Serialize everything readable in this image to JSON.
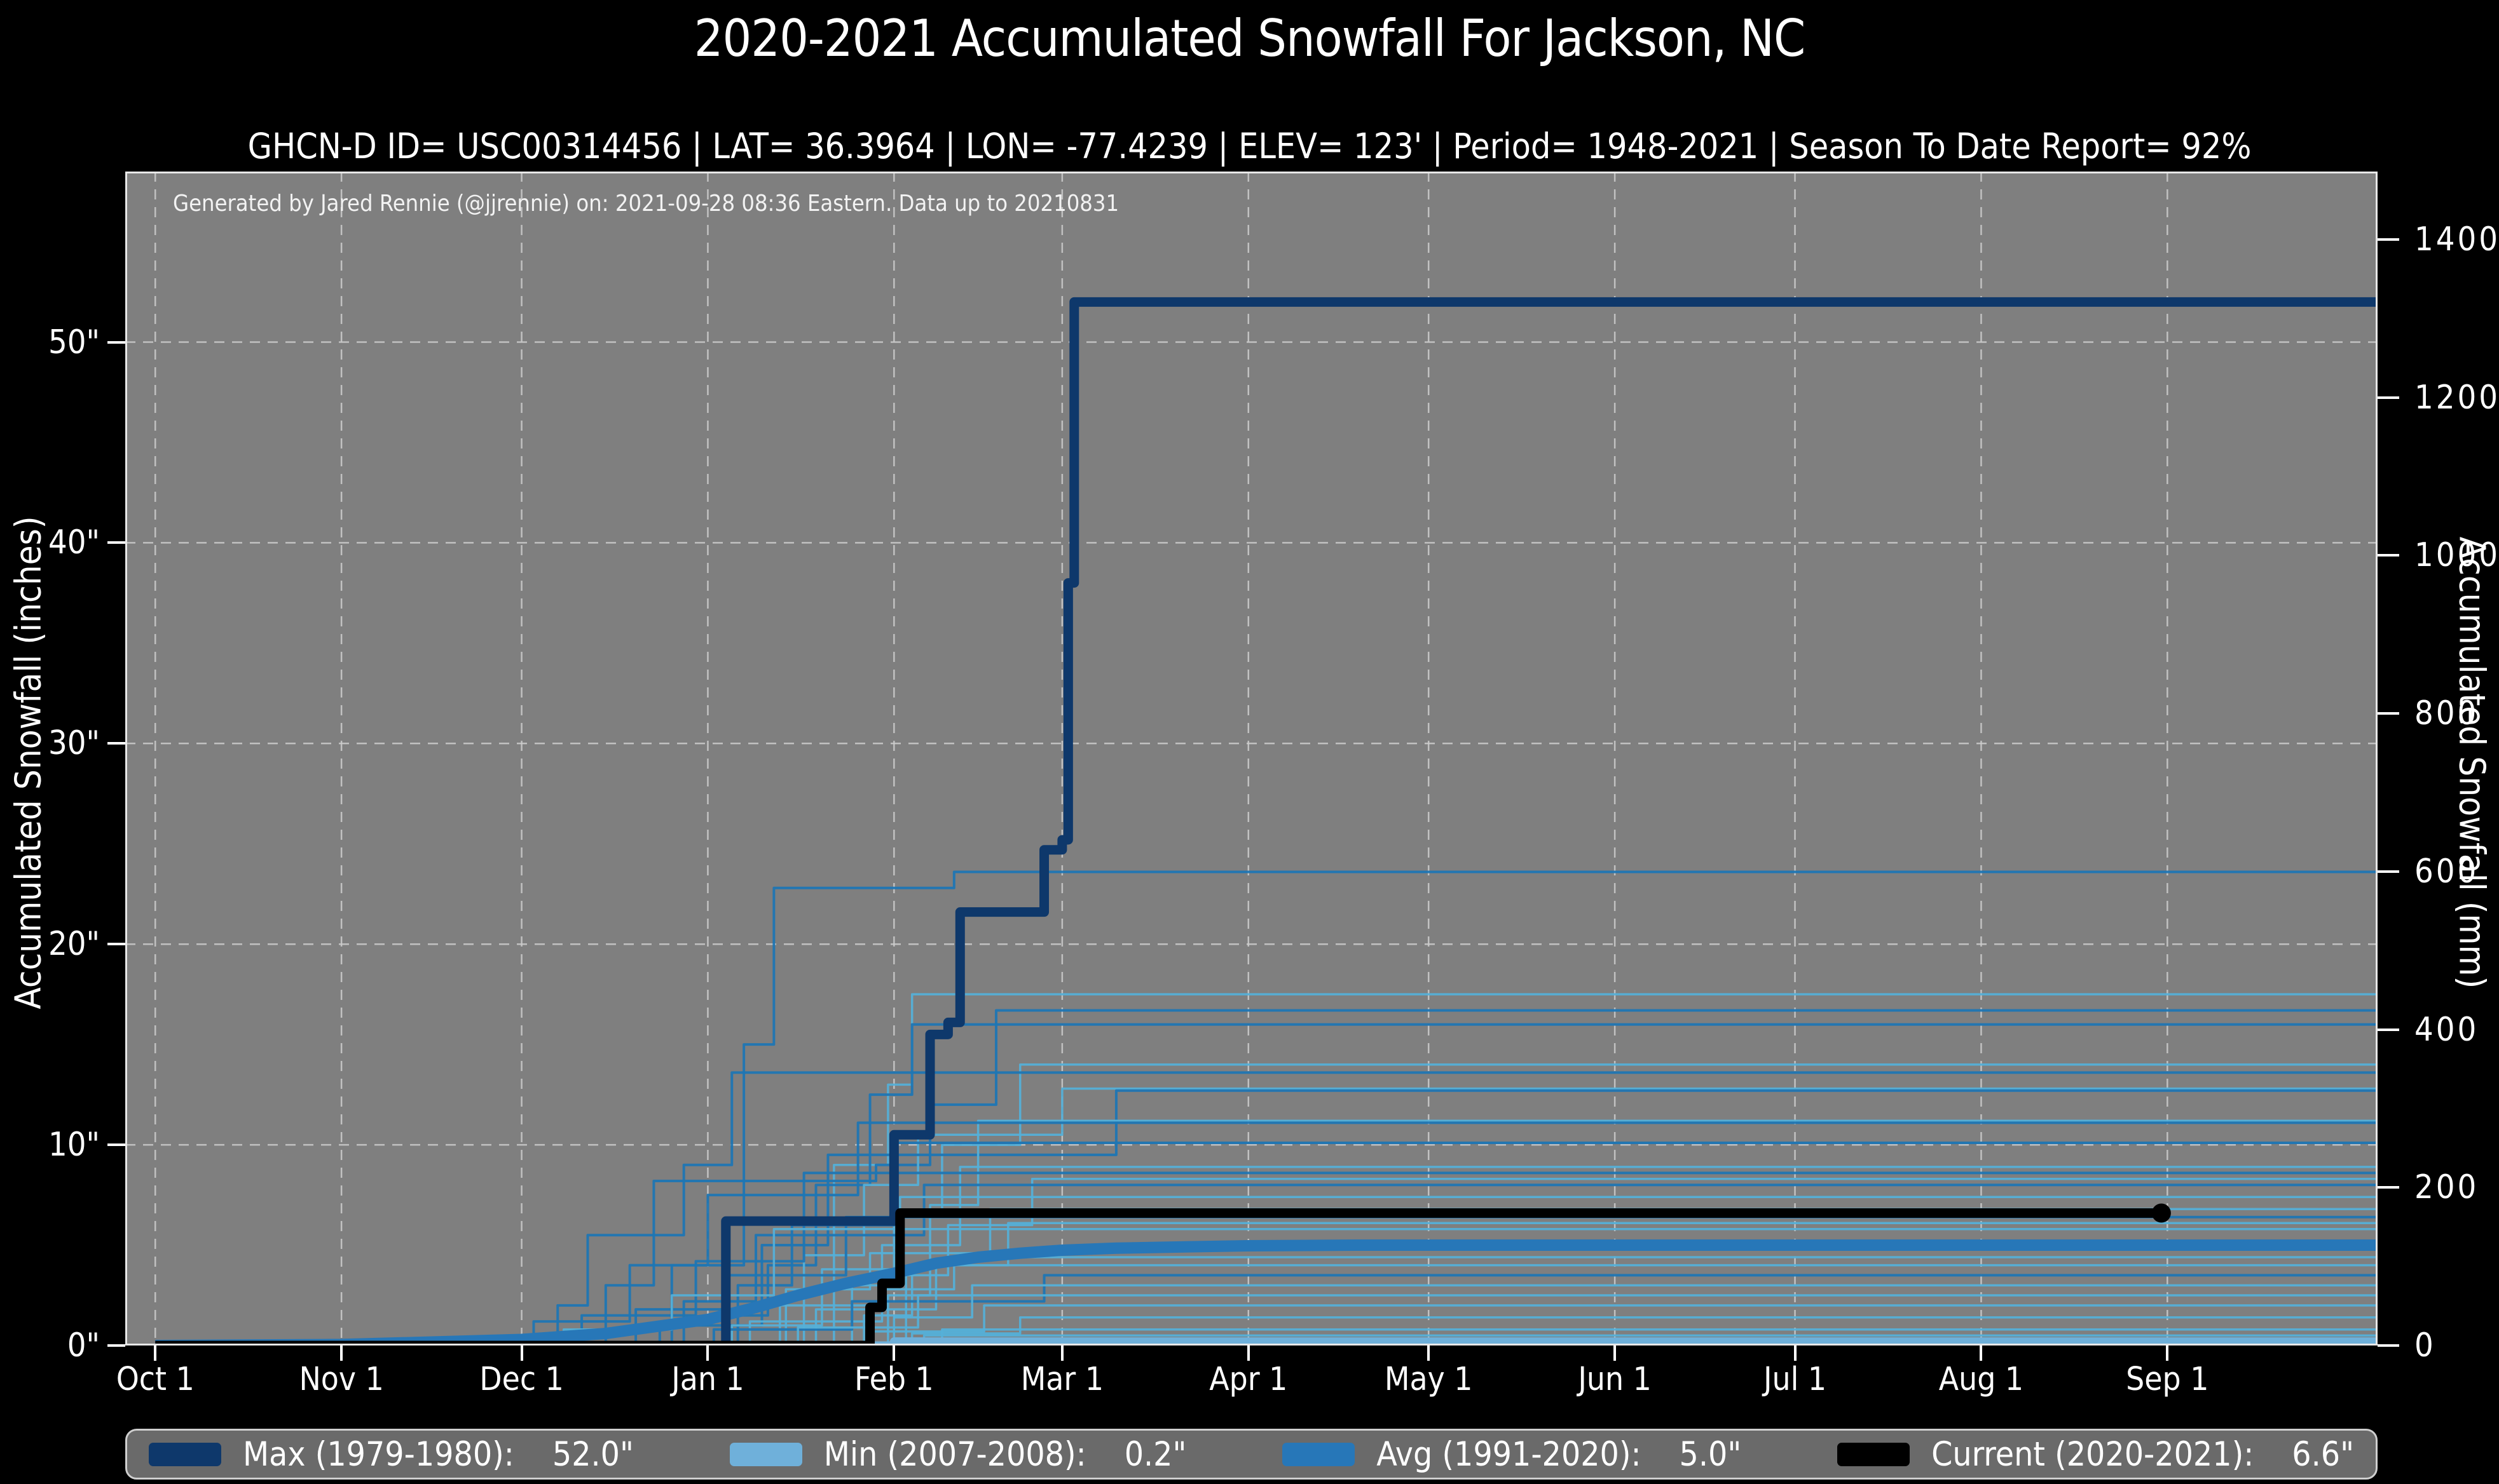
{
  "title": "2020-2021 Accumulated Snowfall For Jackson, NC",
  "subtitle": "GHCN-D ID= USC00314456 | LAT= 36.3964 | LON= -77.4239 | ELEV= 123' | Period= 1948-2021 | Season To Date Report= 92%",
  "watermark": "Generated by Jared Rennie (@jjrennie) on: 2021-09-28 08:36 Eastern. Data up to 20210831",
  "axes": {
    "left_label": "Accumulated Snowfall (inches)",
    "right_label": "Accumulated Snowfall (mm)",
    "inch_ticks": [
      {
        "value": 0,
        "label": "0\""
      },
      {
        "value": 10,
        "label": "10\""
      },
      {
        "value": 20,
        "label": "20\""
      },
      {
        "value": 30,
        "label": "30\""
      },
      {
        "value": 40,
        "label": "40\""
      },
      {
        "value": 50,
        "label": "50\""
      }
    ],
    "mm_ticks": [
      {
        "value": 0,
        "label": "0"
      },
      {
        "value": 200,
        "label": "200"
      },
      {
        "value": 400,
        "label": "400"
      },
      {
        "value": 600,
        "label": "600"
      },
      {
        "value": 800,
        "label": "800"
      },
      {
        "value": 1000,
        "label": "1000"
      },
      {
        "value": 1200,
        "label": "1200"
      },
      {
        "value": 1400,
        "label": "1400"
      }
    ],
    "month_ticks": [
      {
        "day": 0,
        "label": "Oct 1"
      },
      {
        "day": 31,
        "label": "Nov 1"
      },
      {
        "day": 61,
        "label": "Dec 1"
      },
      {
        "day": 92,
        "label": "Jan 1"
      },
      {
        "day": 123,
        "label": "Feb 1"
      },
      {
        "day": 151,
        "label": "Mar 1"
      },
      {
        "day": 182,
        "label": "Apr 1"
      },
      {
        "day": 212,
        "label": "May 1"
      },
      {
        "day": 243,
        "label": "Jun 1"
      },
      {
        "day": 273,
        "label": "Jul 1"
      },
      {
        "day": 304,
        "label": "Aug 1"
      },
      {
        "day": 335,
        "label": "Sep 1"
      }
    ]
  },
  "colors": {
    "page_bg": "#000000",
    "plot_bg": "#7f7f7f",
    "grid": "#cdcdcd",
    "spine": "#e8e8e8",
    "tick": "#ffffff",
    "max": "#0e386b",
    "min": "#6fb0da",
    "avg": "#2777b8",
    "current": "#000000",
    "hist_dark": "#1f76b4",
    "hist_light": "#55b0d8",
    "legend_bg": "#6a6a6a",
    "legend_border": "#cfcfcf"
  },
  "legend": {
    "items": [
      {
        "name": "max",
        "color": "#0e386b",
        "label": "Max (1979-1980):",
        "value": "52.0\""
      },
      {
        "name": "min",
        "color": "#6fb0da",
        "label": "Min (2007-2008):",
        "value": "0.2\""
      },
      {
        "name": "avg",
        "color": "#2777b8",
        "label": "Avg (1991-2020):",
        "value": "5.0\""
      },
      {
        "name": "current",
        "color": "#000000",
        "label": "Current (2020-2021):",
        "value": "6.6\""
      }
    ]
  },
  "chart_data": {
    "type": "line",
    "title": "2020-2021 Accumulated Snowfall For Jackson, NC",
    "x_unit": "day of season (Oct 1 = day 0)",
    "y_unit_left": "inches",
    "y_unit_right": "mm",
    "xlim_days": [
      -5,
      370
    ],
    "ylim_inches": [
      0,
      58.5
    ],
    "grid": "dashed, both axes",
    "legend_position": "bottom bar",
    "series": [
      {
        "name": "Max (1979-1980)",
        "total_inches": 52.0,
        "style": "step",
        "color_key": "max",
        "width": 15,
        "points": [
          [
            0,
            0
          ],
          [
            95,
            6.2
          ],
          [
            123,
            10.5
          ],
          [
            129,
            15.5
          ],
          [
            132,
            16.1
          ],
          [
            134,
            21.6
          ],
          [
            148,
            24.7
          ],
          [
            151,
            25.2
          ],
          [
            152,
            38.0
          ],
          [
            153,
            52.0
          ]
        ]
      },
      {
        "name": "Min (2007-2008)",
        "total_inches": 0.2,
        "style": "step",
        "color_key": "min",
        "width": 13,
        "points": [
          [
            0,
            0
          ],
          [
            123,
            0.2
          ]
        ]
      },
      {
        "name": "Avg (1991-2020)",
        "total_inches": 5.0,
        "style": "smooth",
        "color_key": "avg",
        "width": 18,
        "points": [
          [
            0,
            0
          ],
          [
            31,
            0.05
          ],
          [
            61,
            0.3
          ],
          [
            75,
            0.6
          ],
          [
            92,
            1.3
          ],
          [
            100,
            1.9
          ],
          [
            107,
            2.5
          ],
          [
            115,
            3.1
          ],
          [
            123,
            3.6
          ],
          [
            130,
            4.1
          ],
          [
            137,
            4.4
          ],
          [
            144,
            4.6
          ],
          [
            151,
            4.75
          ],
          [
            160,
            4.85
          ],
          [
            172,
            4.92
          ],
          [
            182,
            4.97
          ],
          [
            200,
            5.0
          ],
          [
            370,
            5.0
          ]
        ]
      },
      {
        "name": "Current (2020-2021)",
        "total_inches": 6.6,
        "style": "step",
        "color_key": "current",
        "width": 15,
        "end_day": 334,
        "end_dot": true,
        "dot_radius": 15,
        "points": [
          [
            0,
            0
          ],
          [
            119,
            1.9
          ],
          [
            121,
            3.1
          ],
          [
            124,
            6.6
          ]
        ]
      }
    ],
    "background_series": [
      {
        "tone": "dark",
        "points": [
          [
            0,
            0
          ],
          [
            86,
            4.0
          ],
          [
            98,
            15.0
          ],
          [
            103,
            22.8
          ],
          [
            133,
            23.6
          ]
        ]
      },
      {
        "tone": "light",
        "points": [
          [
            0,
            0
          ],
          [
            104,
            2.0
          ],
          [
            113,
            9.0
          ],
          [
            122,
            13.0
          ],
          [
            126,
            17.5
          ]
        ]
      },
      {
        "tone": "dark",
        "points": [
          [
            0,
            0
          ],
          [
            75,
            3.0
          ],
          [
            83,
            8.2
          ],
          [
            120,
            9.0
          ],
          [
            129,
            12.0
          ],
          [
            140,
            16.7
          ]
        ]
      },
      {
        "tone": "dark",
        "points": [
          [
            0,
            0
          ],
          [
            95,
            1.5
          ],
          [
            102,
            4.0
          ],
          [
            110,
            8.0
          ],
          [
            119,
            12.5
          ],
          [
            126,
            16.0
          ]
        ]
      },
      {
        "tone": "light",
        "points": [
          [
            0,
            0
          ],
          [
            116,
            3.0
          ],
          [
            123,
            6.5
          ],
          [
            131,
            10.0
          ],
          [
            144,
            14.0
          ]
        ]
      },
      {
        "tone": "dark",
        "points": [
          [
            0,
            0
          ],
          [
            67,
            2.0
          ],
          [
            72,
            5.5
          ],
          [
            88,
            9.0
          ],
          [
            96,
            13.6
          ]
        ]
      },
      {
        "tone": "light",
        "points": [
          [
            0,
            0
          ],
          [
            108,
            4.5
          ],
          [
            118,
            8.0
          ],
          [
            127,
            10.5
          ],
          [
            151,
            12.8
          ]
        ]
      },
      {
        "tone": "dark",
        "points": [
          [
            0,
            0
          ],
          [
            84,
            1.0
          ],
          [
            101,
            5.0
          ],
          [
            112,
            9.5
          ],
          [
            160,
            12.7
          ]
        ]
      },
      {
        "tone": "light",
        "points": [
          [
            0,
            0
          ],
          [
            122,
            2.5
          ],
          [
            129,
            7.0
          ],
          [
            137,
            11.2
          ]
        ]
      },
      {
        "tone": "dark",
        "points": [
          [
            0,
            0
          ],
          [
            63,
            1.2
          ],
          [
            79,
            4.0
          ],
          [
            92,
            7.5
          ],
          [
            117,
            11.1
          ]
        ]
      },
      {
        "tone": "dark",
        "points": [
          [
            0,
            0
          ],
          [
            97,
            3.0
          ],
          [
            106,
            6.0
          ],
          [
            123,
            10.1
          ]
        ]
      },
      {
        "tone": "light",
        "points": [
          [
            0,
            0
          ],
          [
            113,
            2.0
          ],
          [
            121,
            5.0
          ],
          [
            134,
            8.9
          ]
        ]
      },
      {
        "tone": "dark",
        "points": [
          [
            0,
            0
          ],
          [
            71,
            1.5
          ],
          [
            90,
            4.2
          ],
          [
            108,
            8.6
          ]
        ]
      },
      {
        "tone": "light",
        "points": [
          [
            0,
            0
          ],
          [
            125,
            3.5
          ],
          [
            132,
            6.0
          ],
          [
            146,
            8.3
          ]
        ]
      },
      {
        "tone": "dark",
        "points": [
          [
            0,
            0
          ],
          [
            88,
            2.2
          ],
          [
            100,
            5.5
          ],
          [
            128,
            8.0
          ]
        ]
      },
      {
        "tone": "light",
        "points": [
          [
            0,
            0
          ],
          [
            96,
            1.0
          ],
          [
            111,
            3.8
          ],
          [
            124,
            7.4
          ]
        ]
      },
      {
        "tone": "light",
        "points": [
          [
            0,
            0
          ],
          [
            105,
            2.8
          ],
          [
            119,
            4.6
          ],
          [
            139,
            6.8
          ]
        ]
      },
      {
        "tone": "dark",
        "points": [
          [
            0,
            0
          ],
          [
            80,
            1.8
          ],
          [
            95,
            3.5
          ],
          [
            115,
            6.4
          ]
        ]
      },
      {
        "tone": "light",
        "points": [
          [
            0,
            0
          ],
          [
            118,
            1.5
          ],
          [
            126,
            4.0
          ],
          [
            142,
            6.1
          ]
        ]
      },
      {
        "tone": "light",
        "points": [
          [
            0,
            0
          ],
          [
            68,
            0.8
          ],
          [
            86,
            2.5
          ],
          [
            103,
            5.8
          ]
        ]
      },
      {
        "tone": "light",
        "points": [
          [
            0,
            0
          ],
          [
            99,
            1.2
          ],
          [
            121,
            2.8
          ],
          [
            133,
            4.4
          ]
        ]
      },
      {
        "tone": "light",
        "points": [
          [
            0,
            0
          ],
          [
            110,
            1.8
          ],
          [
            130,
            4.0
          ]
        ]
      },
      {
        "tone": "dark",
        "points": [
          [
            0,
            0
          ],
          [
            93,
            0.8
          ],
          [
            116,
            2.2
          ],
          [
            148,
            3.5
          ]
        ]
      },
      {
        "tone": "light",
        "points": [
          [
            0,
            0
          ],
          [
            123,
            1.4
          ],
          [
            136,
            3.0
          ]
        ]
      },
      {
        "tone": "light",
        "points": [
          [
            0,
            0
          ],
          [
            107,
            0.9
          ],
          [
            127,
            2.5
          ]
        ]
      },
      {
        "tone": "light",
        "points": [
          [
            0,
            0
          ],
          [
            119,
            0.7
          ],
          [
            138,
            2.0
          ]
        ]
      },
      {
        "tone": "light",
        "points": [
          [
            0,
            0
          ],
          [
            126,
            0.6
          ],
          [
            144,
            1.4
          ]
        ]
      },
      {
        "tone": "light",
        "points": [
          [
            0,
            0
          ],
          [
            131,
            0.8
          ]
        ]
      },
      {
        "tone": "light",
        "points": [
          [
            0,
            0
          ],
          [
            128,
            0.5
          ]
        ]
      }
    ]
  }
}
